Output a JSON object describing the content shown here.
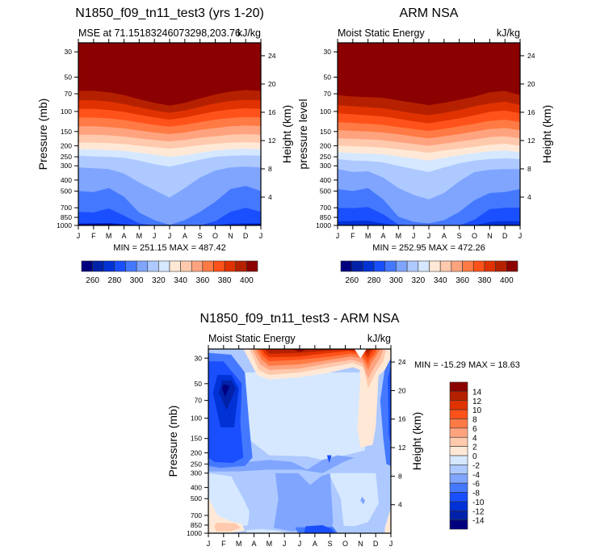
{
  "chart_data": [
    {
      "type": "heatmap",
      "id": "model",
      "title": "N1850_f09_tn11_test3 (yrs 1-20)",
      "left_subtitle": "MSE at 71.15183246073298,203.76",
      "right_subtitle": "kJ/kg",
      "ylabel": "Pressure (mb)",
      "y2label": "Height (km)",
      "x_ticks": [
        "J",
        "F",
        "M",
        "A",
        "M",
        "J",
        "J",
        "A",
        "S",
        "O",
        "N",
        "D",
        "J"
      ],
      "y_ticks": [
        30,
        50,
        70,
        100,
        150,
        200,
        250,
        300,
        400,
        500,
        700,
        850,
        1000
      ],
      "y2_ticks": [
        4,
        8,
        12,
        16,
        20,
        24
      ],
      "ylim": [
        25,
        1000
      ],
      "min_max_label": "MIN = 251.15 MAX = 487.42",
      "levels": [
        260,
        270,
        280,
        290,
        300,
        310,
        320,
        330,
        340,
        350,
        360,
        370,
        380,
        390,
        400
      ],
      "colorbar_labels": [
        "260",
        "280",
        "300",
        "320",
        "340",
        "360",
        "380",
        "400"
      ],
      "band_boundaries_mb": [
        [
          975,
          975,
          970,
          985,
          1000,
          1000,
          1000,
          1000,
          1000,
          1000,
          990,
          980,
          975
        ],
        [
          960,
          955,
          950,
          975,
          1000,
          1000,
          1000,
          1000,
          1000,
          1000,
          965,
          955,
          960
        ],
        [
          760,
          770,
          710,
          820,
          960,
          1000,
          1000,
          1000,
          1000,
          920,
          760,
          700,
          760
        ],
        [
          500,
          510,
          470,
          560,
          770,
          900,
          990,
          900,
          760,
          620,
          480,
          450,
          500
        ],
        [
          310,
          315,
          320,
          350,
          420,
          490,
          570,
          470,
          380,
          330,
          310,
          305,
          310
        ],
        [
          245,
          248,
          250,
          255,
          270,
          290,
          305,
          285,
          265,
          250,
          245,
          243,
          245
        ],
        [
          215,
          215,
          218,
          222,
          230,
          240,
          250,
          242,
          230,
          220,
          215,
          212,
          215
        ],
        [
          188,
          188,
          190,
          193,
          200,
          206,
          212,
          206,
          198,
          192,
          188,
          186,
          188
        ],
        [
          160,
          160,
          162,
          166,
          172,
          178,
          183,
          178,
          170,
          165,
          160,
          158,
          160
        ],
        [
          135,
          135,
          137,
          141,
          147,
          153,
          158,
          153,
          145,
          140,
          135,
          133,
          135
        ],
        [
          113,
          113,
          115,
          119,
          125,
          131,
          136,
          131,
          124,
          118,
          114,
          112,
          113
        ],
        [
          95,
          95,
          97,
          101,
          107,
          113,
          118,
          113,
          106,
          100,
          96,
          94,
          95
        ],
        [
          80,
          80,
          82,
          86,
          92,
          98,
          103,
          98,
          91,
          85,
          81,
          79,
          80
        ],
        [
          66,
          66,
          68,
          72,
          78,
          84,
          89,
          84,
          77,
          71,
          67,
          65,
          66
        ]
      ]
    },
    {
      "type": "heatmap",
      "id": "obs",
      "title": "ARM NSA",
      "left_subtitle": "Moist Static Energy",
      "right_subtitle": "kJ/kg",
      "ylabel": "pressure level",
      "y2label": "Height (km)",
      "x_ticks": [
        "J",
        "F",
        "M",
        "A",
        "M",
        "J",
        "J",
        "A",
        "S",
        "O",
        "N",
        "D",
        "J"
      ],
      "y_ticks": [
        30,
        50,
        70,
        100,
        150,
        200,
        250,
        300,
        400,
        500,
        700,
        850,
        1000
      ],
      "y2_ticks": [
        4,
        8,
        12,
        16,
        20,
        24
      ],
      "ylim": [
        25,
        1000
      ],
      "min_max_label": "MIN = 252.95 MAX = 472.26",
      "levels": [
        260,
        270,
        280,
        290,
        300,
        310,
        320,
        330,
        340,
        350,
        360,
        370,
        380,
        390,
        400
      ],
      "colorbar_labels": [
        "260",
        "280",
        "300",
        "320",
        "340",
        "360",
        "380",
        "400"
      ],
      "band_boundaries_mb": [
        [
          990,
          990,
          988,
          995,
          1000,
          1000,
          1000,
          1000,
          1000,
          1000,
          995,
          985,
          990
        ],
        [
          920,
          915,
          910,
          960,
          1000,
          1000,
          1000,
          1000,
          1000,
          1000,
          930,
          915,
          920
        ],
        [
          700,
          705,
          690,
          800,
          980,
          1000,
          1000,
          1000,
          1000,
          890,
          720,
          700,
          700
        ],
        [
          480,
          500,
          470,
          590,
          840,
          930,
          960,
          900,
          760,
          600,
          520,
          510,
          480
        ],
        [
          320,
          340,
          335,
          380,
          470,
          540,
          590,
          520,
          410,
          340,
          325,
          320,
          320
        ],
        [
          262,
          270,
          272,
          280,
          300,
          320,
          340,
          310,
          285,
          270,
          262,
          258,
          262
        ],
        [
          228,
          232,
          234,
          238,
          248,
          258,
          270,
          255,
          242,
          232,
          224,
          220,
          228
        ],
        [
          200,
          202,
          204,
          208,
          215,
          222,
          230,
          220,
          212,
          204,
          196,
          192,
          200
        ],
        [
          172,
          174,
          176,
          179,
          186,
          193,
          200,
          192,
          184,
          176,
          168,
          165,
          172
        ],
        [
          146,
          148,
          150,
          153,
          159,
          166,
          172,
          165,
          158,
          150,
          143,
          140,
          146
        ],
        [
          124,
          126,
          128,
          131,
          137,
          143,
          148,
          142,
          135,
          128,
          121,
          118,
          124
        ],
        [
          104,
          106,
          108,
          111,
          116,
          122,
          127,
          121,
          115,
          108,
          101,
          98,
          104
        ],
        [
          88,
          90,
          92,
          94,
          99,
          104,
          108,
          103,
          97,
          90,
          85,
          82,
          88
        ],
        [
          72,
          74,
          75,
          76,
          80,
          84,
          88,
          84,
          79,
          74,
          68,
          66,
          72
        ]
      ]
    },
    {
      "type": "heatmap",
      "id": "diff",
      "title": "N1850_f09_tn11_test3 - ARM NSA",
      "left_subtitle": "Moist Static Energy",
      "right_subtitle": "kJ/kg",
      "ylabel": "Pressure (mb)",
      "y2label": "Height (km)",
      "x_ticks": [
        "J",
        "F",
        "M",
        "A",
        "M",
        "J",
        "J",
        "A",
        "S",
        "O",
        "N",
        "D",
        "J"
      ],
      "y_ticks": [
        30,
        50,
        70,
        100,
        150,
        200,
        250,
        300,
        400,
        500,
        700,
        850,
        1000
      ],
      "y2_ticks": [
        4,
        8,
        12,
        16,
        20,
        24
      ],
      "ylim": [
        25,
        1000
      ],
      "min_max_label": "MIN = -15.29 MAX =  18.63",
      "levels": [
        -14,
        -12,
        -10,
        -8,
        -6,
        -4,
        -2,
        0,
        2,
        4,
        6,
        8,
        10,
        12,
        14
      ],
      "colorbar_labels": [
        "14",
        "12",
        "10",
        "8",
        "6",
        "4",
        "2",
        "0",
        "-2",
        "-4",
        "-6",
        "-8",
        "-10",
        "-12",
        "-14"
      ],
      "description": "Difference field: mostly -2 to -6 in troposphere, strong negative (<-14) near 50-70 mb in Feb, positive stratospheric values (>14) near top May-Sep and Nov, positive near-surface values Jan-Mar and late Dec."
    }
  ],
  "colors": {
    "palette": [
      "#00007f",
      "#0021a8",
      "#0032d6",
      "#1a4fff",
      "#4479ff",
      "#7fa5ff",
      "#adc9ff",
      "#d6e8ff",
      "#ffe9d6",
      "#ffc9ad",
      "#ffa37f",
      "#ff7a44",
      "#ff521a",
      "#e03200",
      "#b52100",
      "#8b0000"
    ]
  }
}
